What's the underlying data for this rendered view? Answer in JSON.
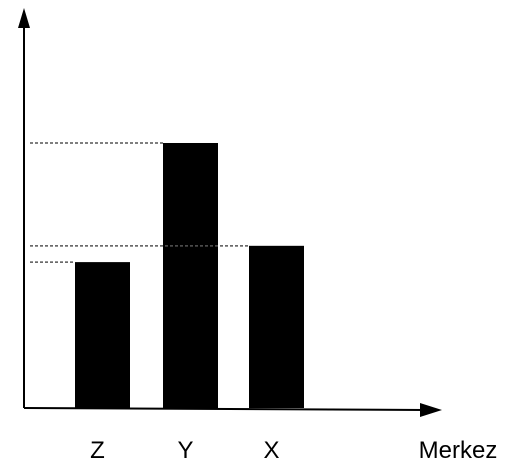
{
  "chart_data": {
    "type": "bar",
    "x_label": "Merkez",
    "categories": [
      "Z",
      "Y",
      "X"
    ],
    "values": [
      37.6,
      68.3,
      41.8
    ],
    "color": "#000000",
    "ylim": [
      0,
      100
    ],
    "guide_lines": true
  }
}
